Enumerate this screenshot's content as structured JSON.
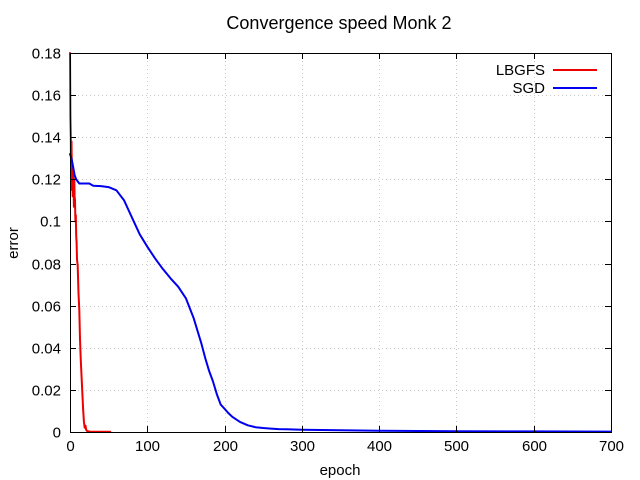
{
  "chart_data": {
    "type": "line",
    "title": "Convergence speed Monk 2",
    "xlabel": "epoch",
    "ylabel": "error",
    "xlim": [
      0,
      700
    ],
    "ylim": [
      0,
      0.18
    ],
    "xticks": [
      0,
      100,
      200,
      300,
      400,
      500,
      600,
      700
    ],
    "yticks": [
      0,
      0.02,
      0.04,
      0.06,
      0.08,
      0.1,
      0.12,
      0.14,
      0.16,
      0.18
    ],
    "xtick_labels": [
      "0",
      "100",
      "200",
      "300",
      "400",
      "500",
      "600",
      "700"
    ],
    "ytick_labels": [
      "0",
      "0.02",
      "0.04",
      "0.06",
      "0.08",
      "0.1",
      "0.12",
      "0.14",
      "0.16",
      "0.18"
    ],
    "grid": true,
    "legend_position": "top-right",
    "series": [
      {
        "name": "LBGFS",
        "color": "#ee0000",
        "x": [
          0,
          0.5,
          1,
          1.5,
          2,
          2.5,
          3,
          3.5,
          4,
          4.5,
          5,
          5.5,
          6,
          6.5,
          7,
          7.5,
          8,
          8.5,
          9,
          10,
          11,
          12,
          13,
          14,
          15,
          16,
          17,
          18,
          19,
          20,
          21,
          22,
          24,
          26,
          30,
          40,
          52
        ],
        "y": [
          0.18,
          0.15,
          0.14,
          0.115,
          0.138,
          0.12,
          0.127,
          0.112,
          0.125,
          0.118,
          0.107,
          0.12,
          0.112,
          0.11,
          0.1,
          0.103,
          0.093,
          0.09,
          0.082,
          0.079,
          0.066,
          0.058,
          0.044,
          0.034,
          0.026,
          0.018,
          0.011,
          0.005,
          0.002,
          0.003,
          0.001,
          0.0005,
          0.0003,
          0.0002,
          0.0001,
          0.0001,
          0.0001
        ]
      },
      {
        "name": "SGD",
        "color": "#0000ee",
        "x": [
          0,
          2,
          4,
          6,
          8,
          10,
          12,
          15,
          20,
          25,
          30,
          40,
          50,
          60,
          70,
          80,
          90,
          100,
          110,
          120,
          130,
          140,
          150,
          160,
          170,
          175,
          180,
          185,
          190,
          195,
          200,
          205,
          210,
          220,
          230,
          240,
          250,
          260,
          270,
          280,
          300,
          350,
          400,
          500,
          600,
          700
        ],
        "y": [
          0.132,
          0.13,
          0.126,
          0.122,
          0.12,
          0.119,
          0.118,
          0.118,
          0.118,
          0.118,
          0.117,
          0.1168,
          0.1163,
          0.1148,
          0.11,
          0.102,
          0.094,
          0.088,
          0.0825,
          0.0775,
          0.073,
          0.069,
          0.0635,
          0.054,
          0.042,
          0.035,
          0.029,
          0.024,
          0.018,
          0.013,
          0.011,
          0.009,
          0.0072,
          0.0048,
          0.0032,
          0.0023,
          0.0019,
          0.0016,
          0.0014,
          0.0013,
          0.0011,
          0.0008,
          0.0006,
          0.0004,
          0.0003,
          0.0002
        ]
      }
    ]
  }
}
